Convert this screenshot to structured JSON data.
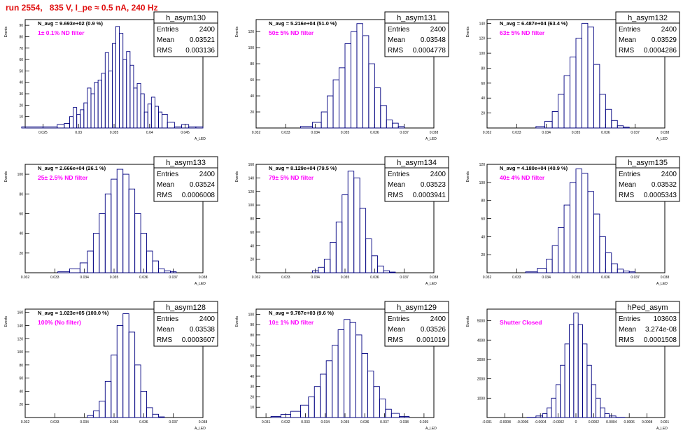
{
  "page_title": "run 2554,   835 V, I_pe ≈ 0.5 nA, 240 Hz",
  "colors": {
    "title": "#e01010",
    "annotation": "#ff00ff",
    "histogram": "#000080",
    "axis": "#000000"
  },
  "chart_data": [
    {
      "type": "bar",
      "name": "h_asym130",
      "title": "N_avg = 9.693e+02 (0.9 %)",
      "annotation": "1± 0.1% ND filter",
      "ylabel": "Events",
      "xlabel": "A_LED",
      "stats": [
        [
          "Entries",
          "2400"
        ],
        [
          "Mean",
          "0.03521"
        ],
        [
          "RMS",
          "0.003136"
        ]
      ],
      "xlim": [
        0.0225,
        0.0475
      ],
      "ylim": [
        0,
        95
      ],
      "xticks": [
        "0.025",
        "0.03",
        "0.035",
        "0.04",
        "0.045"
      ],
      "yticks": [
        "10",
        "20",
        "30",
        "40",
        "50",
        "60",
        "70",
        "80",
        "90"
      ],
      "x": [
        0.0235,
        0.0265,
        0.0275,
        0.0285,
        0.029,
        0.0295,
        0.03,
        0.0305,
        0.031,
        0.0315,
        0.032,
        0.0325,
        0.033,
        0.0335,
        0.034,
        0.0345,
        0.035,
        0.0355,
        0.036,
        0.0365,
        0.037,
        0.0375,
        0.038,
        0.0385,
        0.039,
        0.0395,
        0.04,
        0.0405,
        0.041,
        0.0415,
        0.042,
        0.043,
        0.044,
        0.045,
        0.046,
        0.047
      ],
      "values": [
        1,
        1,
        3,
        4,
        10,
        18,
        12,
        16,
        22,
        35,
        30,
        40,
        42,
        48,
        66,
        50,
        74,
        89,
        83,
        60,
        67,
        55,
        35,
        39,
        30,
        14,
        21,
        27,
        19,
        14,
        12,
        5,
        1,
        3,
        1,
        1
      ]
    },
    {
      "type": "bar",
      "name": "h_asym131",
      "title": "N_avg = 5.216e+04 (51.0 %)",
      "annotation": "50± 5% ND filter",
      "ylabel": "Events",
      "xlabel": "A_LED",
      "stats": [
        [
          "Entries",
          "2400"
        ],
        [
          "Mean",
          "0.03548"
        ],
        [
          "RMS",
          "0.0004778"
        ]
      ],
      "xlim": [
        0.032,
        0.038
      ],
      "ylim": [
        0,
        135
      ],
      "xticks": [
        "0.032",
        "0.033",
        "0.034",
        "0.035",
        "0.036",
        "0.037",
        "0.038"
      ],
      "yticks": [
        "20",
        "40",
        "60",
        "80",
        "100",
        "120"
      ],
      "x": [
        0.0337,
        0.0341,
        0.0343,
        0.0345,
        0.0347,
        0.0349,
        0.0351,
        0.0353,
        0.0355,
        0.0357,
        0.0359,
        0.0361,
        0.0363,
        0.0365,
        0.0367,
        0.0369
      ],
      "values": [
        2,
        7,
        20,
        40,
        60,
        75,
        105,
        120,
        130,
        115,
        80,
        50,
        28,
        10,
        6,
        2
      ]
    },
    {
      "type": "bar",
      "name": "h_asym132",
      "title": "N_avg = 6.487e+04 (63.4 %)",
      "annotation": "63± 5% ND filter",
      "ylabel": "Events",
      "xlabel": "A_LED",
      "stats": [
        [
          "Entries",
          "2400"
        ],
        [
          "Mean",
          "0.03529"
        ],
        [
          "RMS",
          "0.0004286"
        ]
      ],
      "xlim": [
        0.032,
        0.038
      ],
      "ylim": [
        0,
        145
      ],
      "xticks": [
        "0.032",
        "0.033",
        "0.034",
        "0.035",
        "0.036",
        "0.037",
        "0.038"
      ],
      "yticks": [
        "20",
        "40",
        "60",
        "80",
        "100",
        "120",
        "140"
      ],
      "x": [
        0.0338,
        0.0341,
        0.0343,
        0.0345,
        0.0347,
        0.0349,
        0.0351,
        0.0353,
        0.0355,
        0.0357,
        0.0359,
        0.0361,
        0.0363,
        0.0365,
        0.0367
      ],
      "values": [
        2,
        9,
        22,
        45,
        70,
        95,
        120,
        140,
        135,
        85,
        45,
        25,
        10,
        3,
        1
      ]
    },
    {
      "type": "bar",
      "name": "h_asym133",
      "title": "N_avg = 2.666e+04 (26.1 %)",
      "annotation": "25± 2.5% ND filter",
      "ylabel": "Events",
      "xlabel": "A_LED",
      "stats": [
        [
          "Entries",
          "2400"
        ],
        [
          "Mean",
          "0.03524"
        ],
        [
          "RMS",
          "0.0006008"
        ]
      ],
      "xlim": [
        0.032,
        0.038
      ],
      "ylim": [
        0,
        110
      ],
      "xticks": [
        "0.032",
        "0.033",
        "0.034",
        "0.035",
        "0.036",
        "0.037",
        "0.038"
      ],
      "yticks": [
        "20",
        "40",
        "60",
        "80",
        "100"
      ],
      "x": [
        0.0333,
        0.0337,
        0.034,
        0.0342,
        0.0344,
        0.0346,
        0.0348,
        0.035,
        0.0352,
        0.0354,
        0.0356,
        0.0358,
        0.036,
        0.0362,
        0.0364,
        0.0366,
        0.0368,
        0.037
      ],
      "values": [
        1,
        4,
        10,
        22,
        40,
        60,
        80,
        95,
        105,
        100,
        85,
        60,
        40,
        22,
        12,
        4,
        2,
        1
      ]
    },
    {
      "type": "bar",
      "name": "h_asym134",
      "title": "N_avg = 8.129e+04 (79.5 %)",
      "annotation": "79± 5% ND filter",
      "ylabel": "Events",
      "xlabel": "A_LED",
      "stats": [
        [
          "Entries",
          "2400"
        ],
        [
          "Mean",
          "0.03523"
        ],
        [
          "RMS",
          "0.0003941"
        ]
      ],
      "xlim": [
        0.032,
        0.038
      ],
      "ylim": [
        0,
        160
      ],
      "xticks": [
        "0.032",
        "0.033",
        "0.034",
        "0.035",
        "0.036",
        "0.037",
        "0.038"
      ],
      "yticks": [
        "20",
        "40",
        "60",
        "80",
        "100",
        "120",
        "140",
        "160"
      ],
      "x": [
        0.034,
        0.0342,
        0.0344,
        0.0346,
        0.0348,
        0.035,
        0.0352,
        0.0354,
        0.0356,
        0.0358,
        0.036,
        0.0362,
        0.0364,
        0.0366
      ],
      "values": [
        3,
        8,
        20,
        45,
        75,
        115,
        150,
        140,
        95,
        50,
        25,
        10,
        3,
        1
      ]
    },
    {
      "type": "bar",
      "name": "h_asym135",
      "title": "N_avg = 4.180e+04 (40.9 %)",
      "annotation": "40± 4% ND filter",
      "ylabel": "Events",
      "xlabel": "A_LED",
      "stats": [
        [
          "Entries",
          "2400"
        ],
        [
          "Mean",
          "0.03532"
        ],
        [
          "RMS",
          "0.0005343"
        ]
      ],
      "xlim": [
        0.032,
        0.038
      ],
      "ylim": [
        0,
        120
      ],
      "xticks": [
        "0.032",
        "0.033",
        "0.034",
        "0.035",
        "0.036",
        "0.037",
        "0.038"
      ],
      "yticks": [
        "20",
        "40",
        "60",
        "80",
        "100",
        "120"
      ],
      "x": [
        0.0335,
        0.0339,
        0.0341,
        0.0343,
        0.0345,
        0.0347,
        0.0349,
        0.0351,
        0.0353,
        0.0355,
        0.0357,
        0.0359,
        0.0361,
        0.0363,
        0.0365,
        0.0367,
        0.0369
      ],
      "values": [
        1,
        5,
        15,
        30,
        50,
        75,
        100,
        115,
        110,
        90,
        65,
        40,
        22,
        10,
        4,
        2,
        1
      ]
    },
    {
      "type": "bar",
      "name": "h_asym128",
      "title": "N_avg = 1.023e+05 (100.0 %)",
      "annotation": "100% (No filter)",
      "ylabel": "Events",
      "xlabel": "A_LED",
      "stats": [
        [
          "Entries",
          "2400"
        ],
        [
          "Mean",
          "0.03538"
        ],
        [
          "RMS",
          "0.0003607"
        ]
      ],
      "xlim": [
        0.032,
        0.038
      ],
      "ylim": [
        0,
        165
      ],
      "xticks": [
        "0.032",
        "0.033",
        "0.034",
        "0.035",
        "0.036",
        "0.037",
        "0.038"
      ],
      "yticks": [
        "20",
        "40",
        "60",
        "80",
        "100",
        "120",
        "140",
        "160"
      ],
      "x": [
        0.0342,
        0.0344,
        0.0346,
        0.0348,
        0.035,
        0.0352,
        0.0354,
        0.0356,
        0.0358,
        0.036,
        0.0362,
        0.0364,
        0.0366
      ],
      "values": [
        3,
        10,
        25,
        55,
        95,
        140,
        158,
        130,
        80,
        40,
        15,
        5,
        1
      ]
    },
    {
      "type": "bar",
      "name": "h_asym129",
      "title": "N_avg = 9.787e+03 (9.6 %)",
      "annotation": "10± 1% ND filter",
      "ylabel": "Events",
      "xlabel": "A_LED",
      "stats": [
        [
          "Entries",
          "2400"
        ],
        [
          "Mean",
          "0.03526"
        ],
        [
          "RMS",
          "0.001019"
        ]
      ],
      "xlim": [
        0.0305,
        0.0395
      ],
      "ylim": [
        0,
        105
      ],
      "xticks": [
        "0.031",
        "0.032",
        "0.033",
        "0.034",
        "0.035",
        "0.036",
        "0.037",
        "0.038",
        "0.039"
      ],
      "yticks": [
        "10",
        "20",
        "30",
        "40",
        "50",
        "60",
        "70",
        "80",
        "90",
        "100"
      ],
      "x": [
        0.0315,
        0.032,
        0.0325,
        0.033,
        0.0333,
        0.0336,
        0.0339,
        0.0342,
        0.0345,
        0.0348,
        0.0351,
        0.0354,
        0.0357,
        0.036,
        0.0363,
        0.0366,
        0.0369,
        0.0372,
        0.0375,
        0.038
      ],
      "values": [
        1,
        3,
        6,
        12,
        20,
        30,
        42,
        55,
        70,
        85,
        95,
        92,
        80,
        62,
        45,
        30,
        18,
        8,
        4,
        1
      ]
    },
    {
      "type": "bar",
      "name": "hPed_asym",
      "title": "",
      "annotation": "Shutter Closed",
      "ylabel": "Events",
      "xlabel": "A_LED",
      "stats": [
        [
          "Entries",
          "103603"
        ],
        [
          "Mean",
          "3.274e-08"
        ],
        [
          "RMS",
          "0.0001508"
        ]
      ],
      "xlim": [
        -0.001,
        0.001
      ],
      "ylim": [
        0,
        5600
      ],
      "xticks": [
        "-0.001",
        "-0.0008",
        "-0.0006",
        "-0.0004",
        "-0.0002",
        "0",
        "0.0002",
        "0.0004",
        "0.0006",
        "0.0008",
        "0.001"
      ],
      "yticks": [
        "1000",
        "2000",
        "3000",
        "4000",
        "5000"
      ],
      "x": [
        -0.0005,
        -0.0004,
        -0.00035,
        -0.0003,
        -0.00025,
        -0.0002,
        -0.00015,
        -0.0001,
        -5e-05,
        0,
        5e-05,
        0.0001,
        0.00015,
        0.0002,
        0.00025,
        0.0003,
        0.00035,
        0.0004,
        0.0005
      ],
      "values": [
        10,
        80,
        200,
        500,
        1000,
        1700,
        2700,
        3800,
        4800,
        5400,
        4800,
        3800,
        2700,
        1700,
        1000,
        500,
        200,
        80,
        10
      ]
    }
  ]
}
